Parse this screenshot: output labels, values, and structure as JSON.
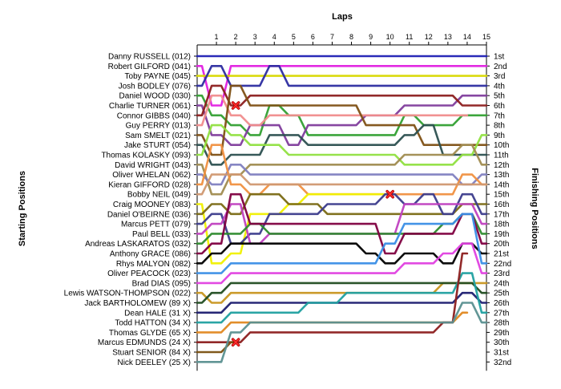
{
  "chart_data": {
    "type": "line",
    "title": "",
    "xlabel": "Laps",
    "ylabel_left": "Starting Positions",
    "ylabel_right": "Finishing Positions",
    "laps": [
      1,
      2,
      3,
      4,
      5,
      6,
      7,
      8,
      9,
      10,
      11,
      12,
      13,
      14,
      15
    ],
    "starting_positions": [
      "Danny RUSSELL (012)",
      "Robert GILFORD (041)",
      "Toby PAYNE (045)",
      "Josh BODLEY (076)",
      "Daniel WOOD (030)",
      "Charlie TURNER (061)",
      "Connor GIBBS (040)",
      "Guy PERRY (013)",
      "Sam SMELT (021)",
      "Jake STURT (054)",
      "Thomas KOLASKY (093)",
      "David WRIGHT (043)",
      "Oliver WHELAN (062)",
      "Kieran GIFFORD (028)",
      "Bobby NEIL (049)",
      "Craig MOONEY (083)",
      "Daniel O'BEIRNE (036)",
      "Marcus PETT (079)",
      "Paul BELL (033)",
      "Andreas LASKARATOS (032)",
      "Anthony GRACE (086)",
      "Rhys MALYON (082)",
      "Oliver PEACOCK (023)",
      "Brad DIAS (095)",
      "Lewis WATSON-THOMPSON (022)",
      "Jack BARTHOLOMEW (89 X)",
      "Dean HALE (31 X)",
      "Todd HATTON (34 X)",
      "Thomas GLYDE (65 X)",
      "Marcus EDMUNDS (24 X)",
      "Stuart SENIOR (84 X)",
      "Nick DEELEY (25 X)"
    ],
    "finishing_positions": [
      "1st",
      "2nd",
      "3rd",
      "4th",
      "5th",
      "6th",
      "7th",
      "8th",
      "9th",
      "10th",
      "11th",
      "12th",
      "13th",
      "14th",
      "15th",
      "16th",
      "17th",
      "18th",
      "19th",
      "20th",
      "21st",
      "22nd",
      "23rd",
      "24th",
      "25th",
      "26th",
      "27th",
      "28th",
      "29th",
      "30th",
      "31st",
      "32nd"
    ],
    "yrange": [
      1,
      32
    ],
    "xrange": [
      0,
      15
    ],
    "grid": false,
    "legend": "none",
    "series": [
      {
        "color": "#1f1fb4",
        "values": [
          1,
          1,
          1,
          1,
          1,
          1,
          1,
          1,
          1,
          1,
          1,
          1,
          1,
          1,
          1
        ]
      },
      {
        "color": "#e020e0",
        "values": [
          6,
          2,
          2,
          2,
          2,
          2,
          2,
          2,
          2,
          2,
          2,
          2,
          2,
          2,
          2
        ]
      },
      {
        "color": "#d8d800",
        "values": [
          3,
          3,
          3,
          3,
          3,
          3,
          3,
          3,
          3,
          3,
          3,
          3,
          3,
          3,
          3
        ]
      },
      {
        "color": "#2c2ca0",
        "values": [
          2,
          4,
          4,
          2,
          4,
          4,
          4,
          4,
          4,
          4,
          4,
          4,
          4,
          4,
          4
        ]
      },
      {
        "color": "#32a032",
        "values": [
          7,
          8,
          9,
          6,
          7,
          9,
          9,
          9,
          9,
          9,
          7,
          8,
          8,
          7,
          7
        ]
      },
      {
        "color": "#803c9c",
        "values": [
          9,
          10,
          8,
          8,
          10,
          8,
          8,
          8,
          7,
          7,
          6,
          6,
          6,
          5,
          5
        ]
      },
      {
        "color": "#8c1e1e",
        "values": [
          4,
          6,
          5,
          5,
          5,
          5,
          5,
          5,
          5,
          5,
          5,
          5,
          5,
          6,
          6
        ]
      },
      {
        "color": "#f08c8c",
        "values": [
          5,
          7,
          8,
          7,
          7,
          7,
          7,
          7,
          7,
          7,
          7,
          7,
          7,
          7
        ]
      },
      {
        "color": "#7e5014",
        "values": [
          11,
          4,
          6,
          6,
          6,
          6,
          6,
          6,
          8,
          8,
          8,
          10,
          10,
          10,
          10
        ]
      },
      {
        "color": "#2c5050",
        "values": [
          12,
          11,
          11,
          9,
          9,
          10,
          10,
          10,
          10,
          10,
          9,
          8,
          11,
          11,
          11
        ]
      },
      {
        "color": "#90e040",
        "values": [
          8,
          9,
          10,
          10,
          11,
          11,
          11,
          11,
          11,
          11,
          12,
          12,
          12,
          11,
          9
        ]
      },
      {
        "color": "#a08c50",
        "values": [
          15,
          13,
          12,
          12,
          12,
          12,
          12,
          12,
          12,
          12,
          11,
          11,
          11,
          10,
          12
        ]
      },
      {
        "color": "#8080c0",
        "values": [
          14,
          12,
          13,
          13,
          13,
          13,
          13,
          13,
          13,
          13,
          13,
          13,
          13,
          14,
          13
        ]
      },
      {
        "color": "#f09040",
        "values": [
          10,
          14,
          15,
          14,
          14,
          15,
          15,
          15,
          15,
          15,
          15,
          15,
          15,
          13,
          14
        ]
      },
      {
        "color": "#d09870",
        "values": [
          13,
          13,
          14,
          14,
          14,
          14,
          14,
          14,
          14,
          14,
          14,
          14,
          14,
          14,
          14
        ]
      },
      {
        "color": "#f0f000",
        "values": [
          22,
          21,
          17,
          17,
          16,
          15,
          15,
          15,
          15,
          15
        ]
      },
      {
        "color": "#7a6a14",
        "values": [
          16,
          17,
          15,
          15,
          16,
          16,
          17,
          17,
          17,
          17,
          17,
          17,
          17,
          16,
          16
        ]
      },
      {
        "color": "#3c3c8c",
        "values": [
          17,
          20,
          19,
          17,
          17,
          17,
          16,
          16,
          16,
          15,
          16,
          15,
          17,
          15,
          17
        ]
      },
      {
        "color": "#c040c0",
        "values": [
          18,
          16,
          20,
          19,
          19,
          19,
          19,
          19,
          19,
          19,
          16,
          16,
          16,
          16,
          18
        ]
      },
      {
        "color": "#2e8b2e",
        "values": [
          19,
          19,
          18,
          19,
          19,
          19,
          19,
          19,
          19,
          19,
          19,
          19,
          18,
          17,
          19
        ]
      },
      {
        "color": "#800040",
        "values": [
          20,
          15,
          18,
          18,
          18,
          18,
          18,
          18,
          18,
          21,
          19,
          19,
          19,
          17,
          20
        ]
      },
      {
        "color": "#000000",
        "values": [
          21,
          20,
          20,
          20,
          20,
          20,
          20,
          20,
          21,
          22,
          21,
          21,
          22,
          20,
          21
        ]
      },
      {
        "color": "#3a8ee6",
        "values": [
          23,
          22,
          22,
          22,
          22,
          22,
          22,
          22,
          22,
          20,
          18,
          18,
          18,
          17,
          22
        ]
      },
      {
        "color": "#e040e0",
        "values": [
          24,
          23,
          23,
          23,
          23,
          23,
          23,
          23,
          23,
          23,
          22,
          22,
          21,
          20,
          23
        ]
      },
      {
        "color": "#c89620",
        "values": [
          26,
          25,
          25,
          25,
          25,
          25,
          25,
          25,
          25,
          25,
          25,
          25,
          24,
          24,
          24
        ]
      },
      {
        "color": "#204c20",
        "values": [
          25,
          24,
          24,
          24,
          24,
          24,
          24,
          24,
          24,
          24,
          24,
          24,
          24,
          24,
          25
        ]
      },
      {
        "color": "#1c1c70",
        "values": [
          27,
          26,
          26,
          26,
          26,
          26,
          26,
          26,
          26,
          26,
          26,
          26,
          26,
          25,
          26
        ]
      },
      {
        "color": "#20a0a0",
        "values": [
          28,
          27,
          27,
          27,
          27,
          26,
          26,
          25,
          25,
          25,
          25,
          25,
          25,
          23,
          27
        ]
      },
      {
        "color": "#e08820",
        "values": [
          29,
          28,
          28,
          28,
          28,
          28,
          28,
          28,
          28,
          28,
          28,
          28,
          28,
          27
        ]
      },
      {
        "color": "#8c1e1e",
        "values": [
          30,
          30,
          29,
          29,
          29,
          29,
          29,
          29,
          29,
          29,
          29,
          29,
          28,
          21
        ]
      },
      {
        "color": "#7a5010",
        "values": [
          31,
          30
        ]
      },
      {
        "color": "#5a9090",
        "values": [
          32,
          29,
          28,
          28,
          28,
          28,
          28,
          28,
          28,
          28,
          28,
          28,
          28,
          26,
          28
        ]
      }
    ],
    "dnf_markers": [
      {
        "lap": 2,
        "position": 6
      },
      {
        "lap": 10,
        "position": 15
      },
      {
        "lap": 2,
        "position": 30
      }
    ]
  }
}
